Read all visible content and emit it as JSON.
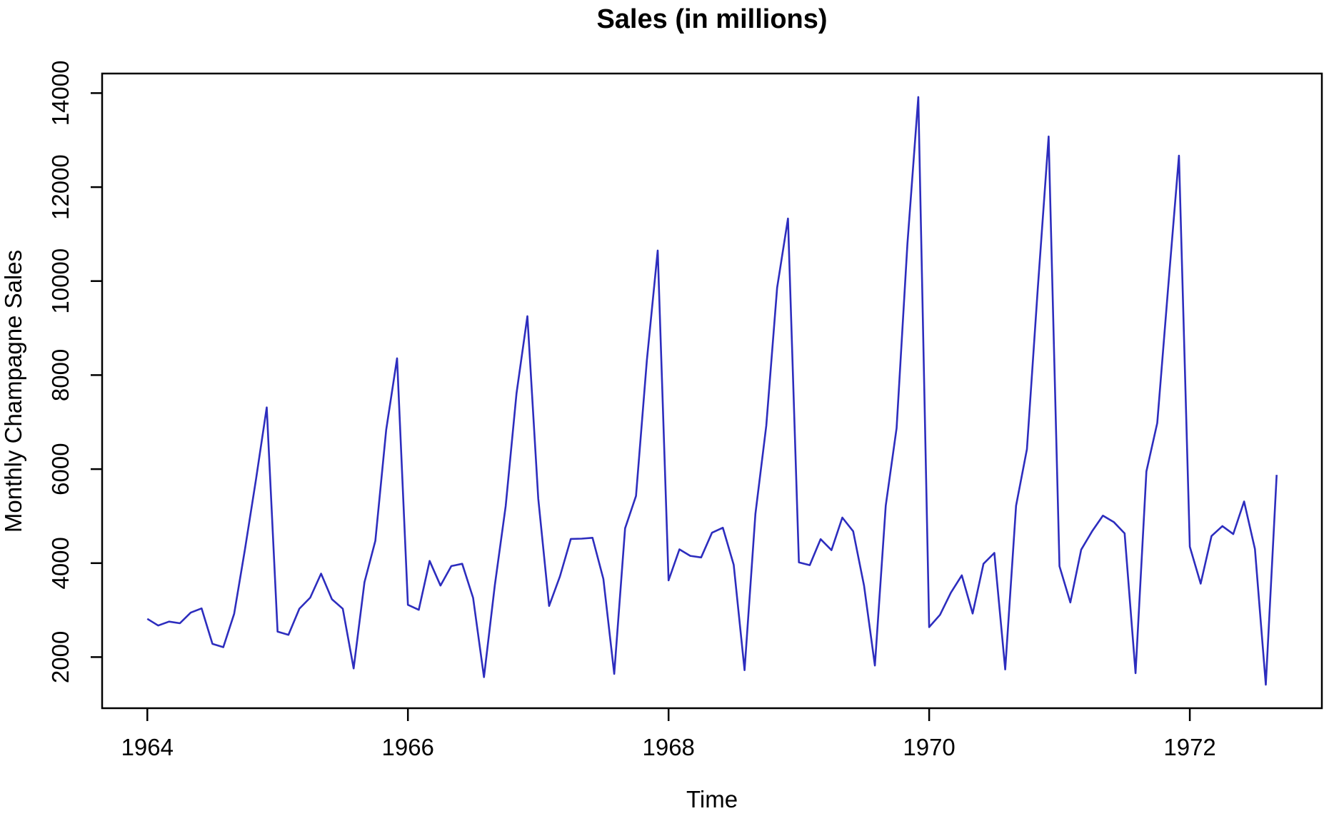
{
  "page": {
    "background_color": "#ffffff"
  },
  "chart_data": {
    "type": "line",
    "title": "Sales (in millions)",
    "xlabel": "Time",
    "ylabel": "Monthly Champagne Sales",
    "series": [
      {
        "name": "Monthly Champagne Sales",
        "color": "#2d2dbe",
        "start_year": 1964,
        "start_month": 1,
        "frequency": 12,
        "values": [
          2815,
          2672,
          2755,
          2721,
          2946,
          3036,
          2282,
          2212,
          2922,
          4301,
          5764,
          7312,
          2541,
          2475,
          3031,
          3266,
          3776,
          3230,
          3028,
          1759,
          3595,
          4474,
          6838,
          8357,
          3113,
          3006,
          4047,
          3523,
          3937,
          3986,
          3260,
          1573,
          3528,
          5211,
          7614,
          9254,
          5375,
          3088,
          3718,
          4514,
          4520,
          4539,
          3663,
          1643,
          4739,
          5428,
          8314,
          10651,
          3633,
          4292,
          4154,
          4121,
          4647,
          4753,
          3965,
          1723,
          5048,
          6922,
          9858,
          11331,
          4016,
          3957,
          4510,
          4276,
          4968,
          4677,
          3523,
          1821,
          5222,
          6872,
          10803,
          13916,
          2639,
          2899,
          3370,
          3740,
          2927,
          3986,
          4217,
          1738,
          5221,
          6424,
          9842,
          13076,
          3934,
          3162,
          4286,
          4676,
          5010,
          4874,
          4633,
          1659,
          5951,
          6981,
          9851,
          12670,
          4348,
          3564,
          4577,
          4788,
          4618,
          5312,
          4298,
          1413,
          5877
        ]
      }
    ],
    "x_ticks": [
      1964,
      1966,
      1968,
      1970,
      1972
    ],
    "y_ticks": [
      2000,
      4000,
      6000,
      8000,
      10000,
      12000,
      14000
    ],
    "x_range_observed": [
      1964.0,
      1972.6667
    ],
    "y_range_observed": [
      1413,
      13916
    ],
    "axis_padding_fraction": 0.04,
    "axis_color": "#000000",
    "grid": false,
    "legend_position": "none"
  }
}
